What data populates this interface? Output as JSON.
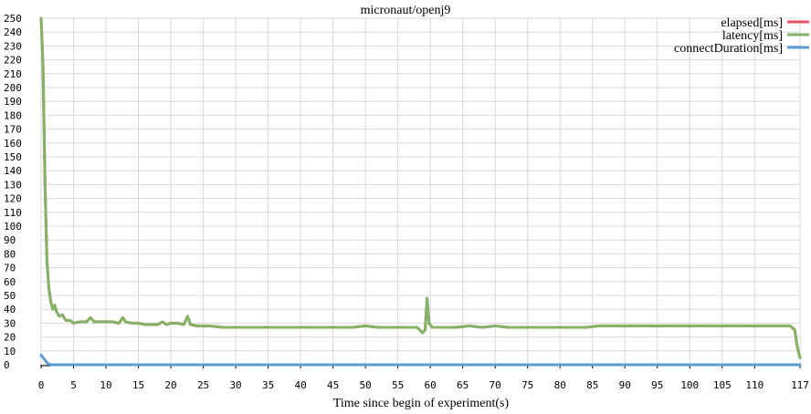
{
  "chart_data": {
    "type": "line",
    "title": "micronaut/openj9",
    "xlabel": "Time since begin of experiment(s)",
    "ylabel": "",
    "xlim": [
      0,
      117
    ],
    "ylim": [
      0,
      250
    ],
    "x_ticks": [
      0,
      5,
      10,
      15,
      20,
      25,
      30,
      35,
      40,
      45,
      50,
      55,
      60,
      65,
      70,
      75,
      80,
      85,
      90,
      95,
      100,
      105,
      110,
      117
    ],
    "y_ticks": [
      0,
      10,
      20,
      30,
      40,
      50,
      60,
      70,
      80,
      90,
      100,
      110,
      120,
      130,
      140,
      150,
      160,
      170,
      180,
      190,
      200,
      210,
      220,
      230,
      240,
      250
    ],
    "grid": true,
    "legend_position": "top-right",
    "series": [
      {
        "name": "elapsed[ms]",
        "color": "#e8505b",
        "points": [
          [
            0,
            250
          ],
          [
            0.3,
            215
          ],
          [
            0.6,
            130
          ],
          [
            0.9,
            75
          ],
          [
            1.2,
            55
          ],
          [
            1.5,
            45
          ],
          [
            1.8,
            40
          ],
          [
            2.1,
            43
          ],
          [
            2.4,
            38
          ],
          [
            2.8,
            35
          ],
          [
            3.3,
            36
          ],
          [
            3.8,
            32
          ],
          [
            4.5,
            32
          ],
          [
            5,
            30
          ],
          [
            6,
            31
          ],
          [
            7,
            31
          ],
          [
            7.6,
            34
          ],
          [
            8.2,
            31
          ],
          [
            9,
            31
          ],
          [
            10,
            31
          ],
          [
            11,
            31
          ],
          [
            12,
            30
          ],
          [
            12.6,
            34
          ],
          [
            13,
            31
          ],
          [
            14,
            30
          ],
          [
            15,
            30
          ],
          [
            16,
            29
          ],
          [
            17,
            29
          ],
          [
            18,
            29
          ],
          [
            18.7,
            31
          ],
          [
            19.3,
            29
          ],
          [
            20,
            30
          ],
          [
            21,
            30
          ],
          [
            22,
            29
          ],
          [
            22.6,
            35
          ],
          [
            23,
            29
          ],
          [
            24,
            28
          ],
          [
            25,
            28
          ],
          [
            26,
            28
          ],
          [
            28,
            27
          ],
          [
            30,
            27
          ],
          [
            32,
            27
          ],
          [
            34,
            27
          ],
          [
            36,
            27
          ],
          [
            38,
            27
          ],
          [
            40,
            27
          ],
          [
            42,
            27
          ],
          [
            44,
            27
          ],
          [
            46,
            27
          ],
          [
            48,
            27
          ],
          [
            50,
            28
          ],
          [
            52,
            27
          ],
          [
            54,
            27
          ],
          [
            56,
            27
          ],
          [
            58,
            27
          ],
          [
            58.8,
            23
          ],
          [
            59.2,
            25
          ],
          [
            59.5,
            48
          ],
          [
            59.8,
            30
          ],
          [
            60.3,
            27
          ],
          [
            62,
            27
          ],
          [
            64,
            27
          ],
          [
            66,
            28
          ],
          [
            68,
            27
          ],
          [
            70,
            28
          ],
          [
            72,
            27
          ],
          [
            74,
            27
          ],
          [
            76,
            27
          ],
          [
            78,
            27
          ],
          [
            80,
            27
          ],
          [
            82,
            27
          ],
          [
            84,
            27
          ],
          [
            86,
            28
          ],
          [
            88,
            28
          ],
          [
            90,
            28
          ],
          [
            92,
            28
          ],
          [
            94,
            28
          ],
          [
            96,
            28
          ],
          [
            98,
            28
          ],
          [
            100,
            28
          ],
          [
            102,
            28
          ],
          [
            104,
            28
          ],
          [
            106,
            28
          ],
          [
            108,
            28
          ],
          [
            110,
            28
          ],
          [
            112,
            28
          ],
          [
            114,
            28
          ],
          [
            115.5,
            28
          ],
          [
            116.2,
            25
          ],
          [
            116.6,
            12
          ],
          [
            117,
            5
          ]
        ]
      },
      {
        "name": "latency[ms]",
        "color": "#82b366",
        "points": [
          [
            0,
            250
          ],
          [
            0.3,
            215
          ],
          [
            0.6,
            130
          ],
          [
            0.9,
            75
          ],
          [
            1.2,
            55
          ],
          [
            1.5,
            45
          ],
          [
            1.8,
            40
          ],
          [
            2.1,
            43
          ],
          [
            2.4,
            38
          ],
          [
            2.8,
            35
          ],
          [
            3.3,
            36
          ],
          [
            3.8,
            32
          ],
          [
            4.5,
            32
          ],
          [
            5,
            30
          ],
          [
            6,
            31
          ],
          [
            7,
            31
          ],
          [
            7.6,
            34
          ],
          [
            8.2,
            31
          ],
          [
            9,
            31
          ],
          [
            10,
            31
          ],
          [
            11,
            31
          ],
          [
            12,
            30
          ],
          [
            12.6,
            34
          ],
          [
            13,
            31
          ],
          [
            14,
            30
          ],
          [
            15,
            30
          ],
          [
            16,
            29
          ],
          [
            17,
            29
          ],
          [
            18,
            29
          ],
          [
            18.7,
            31
          ],
          [
            19.3,
            29
          ],
          [
            20,
            30
          ],
          [
            21,
            30
          ],
          [
            22,
            29
          ],
          [
            22.6,
            35
          ],
          [
            23,
            29
          ],
          [
            24,
            28
          ],
          [
            25,
            28
          ],
          [
            26,
            28
          ],
          [
            28,
            27
          ],
          [
            30,
            27
          ],
          [
            32,
            27
          ],
          [
            34,
            27
          ],
          [
            36,
            27
          ],
          [
            38,
            27
          ],
          [
            40,
            27
          ],
          [
            42,
            27
          ],
          [
            44,
            27
          ],
          [
            46,
            27
          ],
          [
            48,
            27
          ],
          [
            50,
            28
          ],
          [
            52,
            27
          ],
          [
            54,
            27
          ],
          [
            56,
            27
          ],
          [
            58,
            27
          ],
          [
            58.8,
            23
          ],
          [
            59.2,
            25
          ],
          [
            59.5,
            48
          ],
          [
            59.8,
            30
          ],
          [
            60.3,
            27
          ],
          [
            62,
            27
          ],
          [
            64,
            27
          ],
          [
            66,
            28
          ],
          [
            68,
            27
          ],
          [
            70,
            28
          ],
          [
            72,
            27
          ],
          [
            74,
            27
          ],
          [
            76,
            27
          ],
          [
            78,
            27
          ],
          [
            80,
            27
          ],
          [
            82,
            27
          ],
          [
            84,
            27
          ],
          [
            86,
            28
          ],
          [
            88,
            28
          ],
          [
            90,
            28
          ],
          [
            92,
            28
          ],
          [
            94,
            28
          ],
          [
            96,
            28
          ],
          [
            98,
            28
          ],
          [
            100,
            28
          ],
          [
            102,
            28
          ],
          [
            104,
            28
          ],
          [
            106,
            28
          ],
          [
            108,
            28
          ],
          [
            110,
            28
          ],
          [
            112,
            28
          ],
          [
            114,
            28
          ],
          [
            115.5,
            28
          ],
          [
            116.2,
            25
          ],
          [
            116.6,
            12
          ],
          [
            117,
            5
          ]
        ]
      },
      {
        "name": "connectDuration[ms]",
        "color": "#5b9bd5",
        "points": [
          [
            0,
            7
          ],
          [
            0.5,
            4
          ],
          [
            1,
            1
          ],
          [
            1.5,
            0
          ],
          [
            117,
            0
          ]
        ]
      }
    ]
  }
}
